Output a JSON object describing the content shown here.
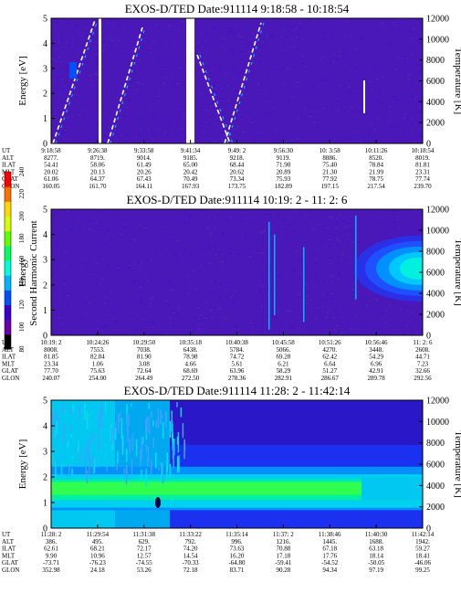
{
  "chart_data": [
    {
      "type": "heatmap",
      "title": "EXOS-D/TED  Date:911114  9:18:58 - 10:18:54",
      "ylabel": "Energy [eV]",
      "y2label": "Temperature [K]",
      "ylim": [
        0,
        5
      ],
      "y2lim": [
        0,
        12000
      ],
      "yticks": [
        "0",
        "1",
        "2",
        "3",
        "4",
        "5"
      ],
      "y2ticks": [
        "0",
        "2000",
        "4000",
        "6000",
        "8000",
        "10000",
        "12000"
      ],
      "rows": [
        {
          "label": "UT",
          "values": [
            "9:18:58",
            "9:26:38",
            "9:33:58",
            "9:41:34",
            "9:49: 2",
            "9:56:30",
            "10: 3:58",
            "10:11:26",
            "10:18:54"
          ]
        },
        {
          "label": "ALT",
          "values": [
            "8277.",
            "8719.",
            "9014.",
            "9185.",
            "9218.",
            "9119.",
            "8886.",
            "8520.",
            "8019."
          ]
        },
        {
          "label": "ILAT",
          "values": [
            "54.41",
            "58.06",
            "61.49",
            "65.00",
            "68.44",
            "71.90",
            "75.40",
            "78.84",
            "81.81"
          ]
        },
        {
          "label": "MLT",
          "values": [
            "20.02",
            "20.13",
            "20.26",
            "20.42",
            "20.62",
            "20.89",
            "21.30",
            "21.99",
            "23.31"
          ]
        },
        {
          "label": "GLAT",
          "values": [
            "61.06",
            "64.37",
            "67.43",
            "70.49",
            "73.34",
            "75.93",
            "77.92",
            "78.75",
            "77.74"
          ]
        },
        {
          "label": "GLON",
          "values": [
            "160.05",
            "161.70",
            "164.11",
            "167.93",
            "173.75",
            "182.89",
            "197.15",
            "217.54",
            "239.70"
          ]
        }
      ]
    },
    {
      "type": "heatmap",
      "title": "EXOS-D/TED   Date:911114  10:19: 2 - 11: 2: 6",
      "ylabel": "Energy",
      "y2label": "Temperature [K]",
      "ylim": [
        0,
        5
      ],
      "y2lim": [
        0,
        12000
      ],
      "yticks": [
        "0",
        "1",
        "2",
        "3",
        "4",
        "5"
      ],
      "y2ticks": [
        "0",
        "2000",
        "4000",
        "6000",
        "8000",
        "10000",
        "12000"
      ],
      "rows": [
        {
          "label": "UT",
          "values": [
            "10:19: 2",
            "10:24:26",
            "10:29:50",
            "10:35:18",
            "10:40:38",
            "10:45:58",
            "10:51:26",
            "10:56:46",
            "11: 2: 6"
          ]
        },
        {
          "label": "ALT",
          "values": [
            "8008.",
            "7553.",
            "7038.",
            "6438.",
            "5784.",
            "5066.",
            "4270.",
            "3448.",
            "2608."
          ]
        },
        {
          "label": "ILAT",
          "values": [
            "81.85",
            "82.84",
            "81.90",
            "78.98",
            "74.72",
            "69.28",
            "62.42",
            "54.29",
            "44.71"
          ]
        },
        {
          "label": "MLT",
          "values": [
            "23.34",
            "1.06",
            "3.08",
            "4.66",
            "5.61",
            "6.21",
            "6.64",
            "6.96",
            "7.23"
          ]
        },
        {
          "label": "GLAT",
          "values": [
            "77.70",
            "75.63",
            "72.64",
            "68.69",
            "63.96",
            "58.29",
            "51.27",
            "42.91",
            "32.66"
          ]
        },
        {
          "label": "GLON",
          "values": [
            "240.07",
            "254.00",
            "264.49",
            "272.50",
            "278.36",
            "282.91",
            "286.67",
            "289.78",
            "292.56"
          ]
        }
      ],
      "colorbar": {
        "label": "Second Harmonic Current",
        "ticks": [
          "80",
          "100",
          "120",
          "140",
          "160",
          "180",
          "200",
          "220",
          "240"
        ]
      }
    },
    {
      "type": "heatmap",
      "title": "EXOS-D/TED   Date:911114  11:28: 2 - 11:42:14",
      "ylabel": "Energy [eV]",
      "y2label": "Temperature [K]",
      "ylim": [
        0,
        5
      ],
      "y2lim": [
        0,
        12000
      ],
      "yticks": [
        "0",
        "1",
        "2",
        "3",
        "4",
        "5"
      ],
      "y2ticks": [
        "0",
        "2000",
        "4000",
        "6000",
        "8000",
        "10000",
        "12000"
      ],
      "rows": [
        {
          "label": "UT",
          "values": [
            "11:28: 2",
            "11:29:54",
            "11:31:38",
            "11:33:22",
            "11:35:14",
            "11:37: 2",
            "11:38:46",
            "11:40:30",
            "11:42:14"
          ]
        },
        {
          "label": "ALT",
          "values": [
            "386.",
            "495.",
            "629.",
            "792.",
            "996.",
            "1216.",
            "1445.",
            "1688.",
            "1942."
          ]
        },
        {
          "label": "ILAT",
          "values": [
            "62.61",
            "68.21",
            "72.17",
            "74.20",
            "73.63",
            "70.88",
            "67.18",
            "63.18",
            "59.27"
          ]
        },
        {
          "label": "MLT",
          "values": [
            "9.90",
            "10.96",
            "12.57",
            "14.54",
            "16.20",
            "17.18",
            "17.76",
            "18.14",
            "18.41"
          ]
        },
        {
          "label": "GLAT",
          "values": [
            "-73.71",
            "-76.23",
            "-74.55",
            "-70.33",
            "-64.80",
            "-59.41",
            "-54.52",
            "-50.05",
            "-46.06"
          ]
        },
        {
          "label": "GLON",
          "values": [
            "352.98",
            "24.18",
            "53.26",
            "72.18",
            "83.71",
            "90.28",
            "94.34",
            "97.19",
            "99.25"
          ]
        }
      ]
    }
  ],
  "colors": {
    "background": "#4a18b8",
    "scale": [
      "#000000",
      "#6a00a8",
      "#3a00d0",
      "#0050ff",
      "#00b4ff",
      "#00ffd8",
      "#00ff60",
      "#60ff00",
      "#d8ff00",
      "#ffd800",
      "#ff7000",
      "#ff0000"
    ]
  }
}
